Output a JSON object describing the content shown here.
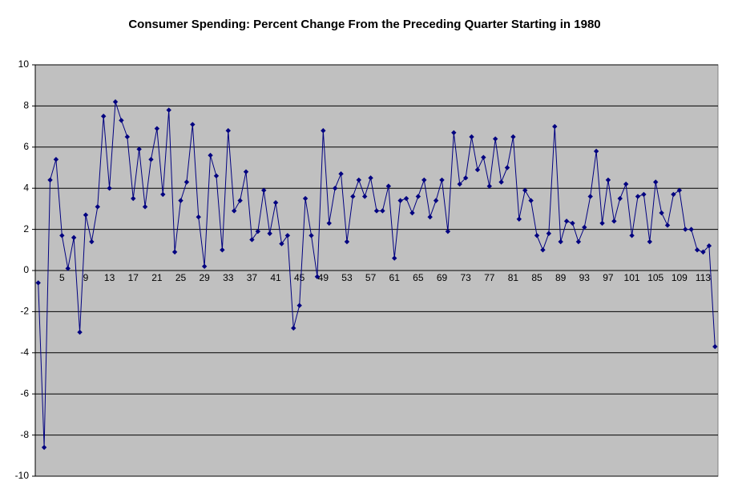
{
  "chart_data": {
    "type": "line",
    "title": "Consumer Spending: Percent Change From the Preceding Quarter  Starting in 1980",
    "categories": [
      null,
      null,
      null,
      null,
      "5",
      null,
      null,
      null,
      "9",
      null,
      null,
      null,
      "13",
      null,
      null,
      null,
      "17",
      null,
      null,
      null,
      "21",
      null,
      null,
      null,
      "25",
      null,
      null,
      null,
      "29",
      null,
      null,
      null,
      "33",
      null,
      null,
      null,
      "37",
      null,
      null,
      null,
      "41",
      null,
      null,
      null,
      "45",
      null,
      null,
      null,
      "49",
      null,
      null,
      null,
      "53",
      null,
      null,
      null,
      "57",
      null,
      null,
      null,
      "61",
      null,
      null,
      null,
      "65",
      null,
      null,
      null,
      "69",
      null,
      null,
      null,
      "73",
      null,
      null,
      null,
      "77",
      null,
      null,
      null,
      "81",
      null,
      null,
      null,
      "85",
      null,
      null,
      null,
      "89",
      null,
      null,
      null,
      "93",
      null,
      null,
      null,
      "97",
      null,
      null,
      null,
      "101",
      null,
      null,
      null,
      "105",
      null,
      null,
      null,
      "109",
      null,
      null,
      null,
      "113",
      null,
      null
    ],
    "values": [
      -0.6,
      -8.6,
      4.4,
      5.4,
      1.7,
      0.1,
      1.6,
      -3.0,
      2.7,
      1.4,
      3.1,
      7.5,
      4.0,
      8.2,
      7.3,
      6.5,
      3.5,
      5.9,
      3.1,
      5.4,
      6.9,
      3.7,
      7.8,
      0.9,
      3.4,
      4.3,
      7.1,
      2.6,
      0.2,
      5.6,
      4.6,
      1.0,
      6.8,
      2.9,
      3.4,
      4.8,
      1.5,
      1.9,
      3.9,
      1.8,
      3.3,
      1.3,
      1.7,
      -2.8,
      -1.7,
      3.5,
      1.7,
      -0.3,
      6.8,
      2.3,
      4.0,
      4.7,
      1.4,
      3.6,
      4.4,
      3.6,
      4.5,
      2.9,
      2.9,
      4.1,
      0.6,
      3.4,
      3.5,
      2.8,
      3.6,
      4.4,
      2.6,
      3.4,
      4.4,
      1.9,
      6.7,
      4.2,
      4.5,
      6.5,
      4.9,
      5.5,
      4.1,
      6.4,
      4.3,
      5.0,
      6.5,
      2.5,
      3.9,
      3.4,
      1.7,
      1.0,
      1.8,
      7.0,
      1.4,
      2.4,
      2.3,
      1.4,
      2.1,
      3.6,
      5.8,
      2.3,
      4.4,
      2.4,
      3.5,
      4.2,
      1.7,
      3.6,
      3.7,
      1.4,
      4.3,
      2.8,
      2.2,
      3.7,
      3.9,
      2.0,
      2.0,
      1.0,
      0.9,
      1.2,
      -3.7
    ],
    "color": "#000080",
    "ylim": [
      -10,
      10
    ],
    "yticks": [
      -10,
      -8,
      -6,
      -4,
      -2,
      0,
      2,
      4,
      6,
      8,
      10
    ],
    "grid": true,
    "background": "#c0c0c0"
  }
}
